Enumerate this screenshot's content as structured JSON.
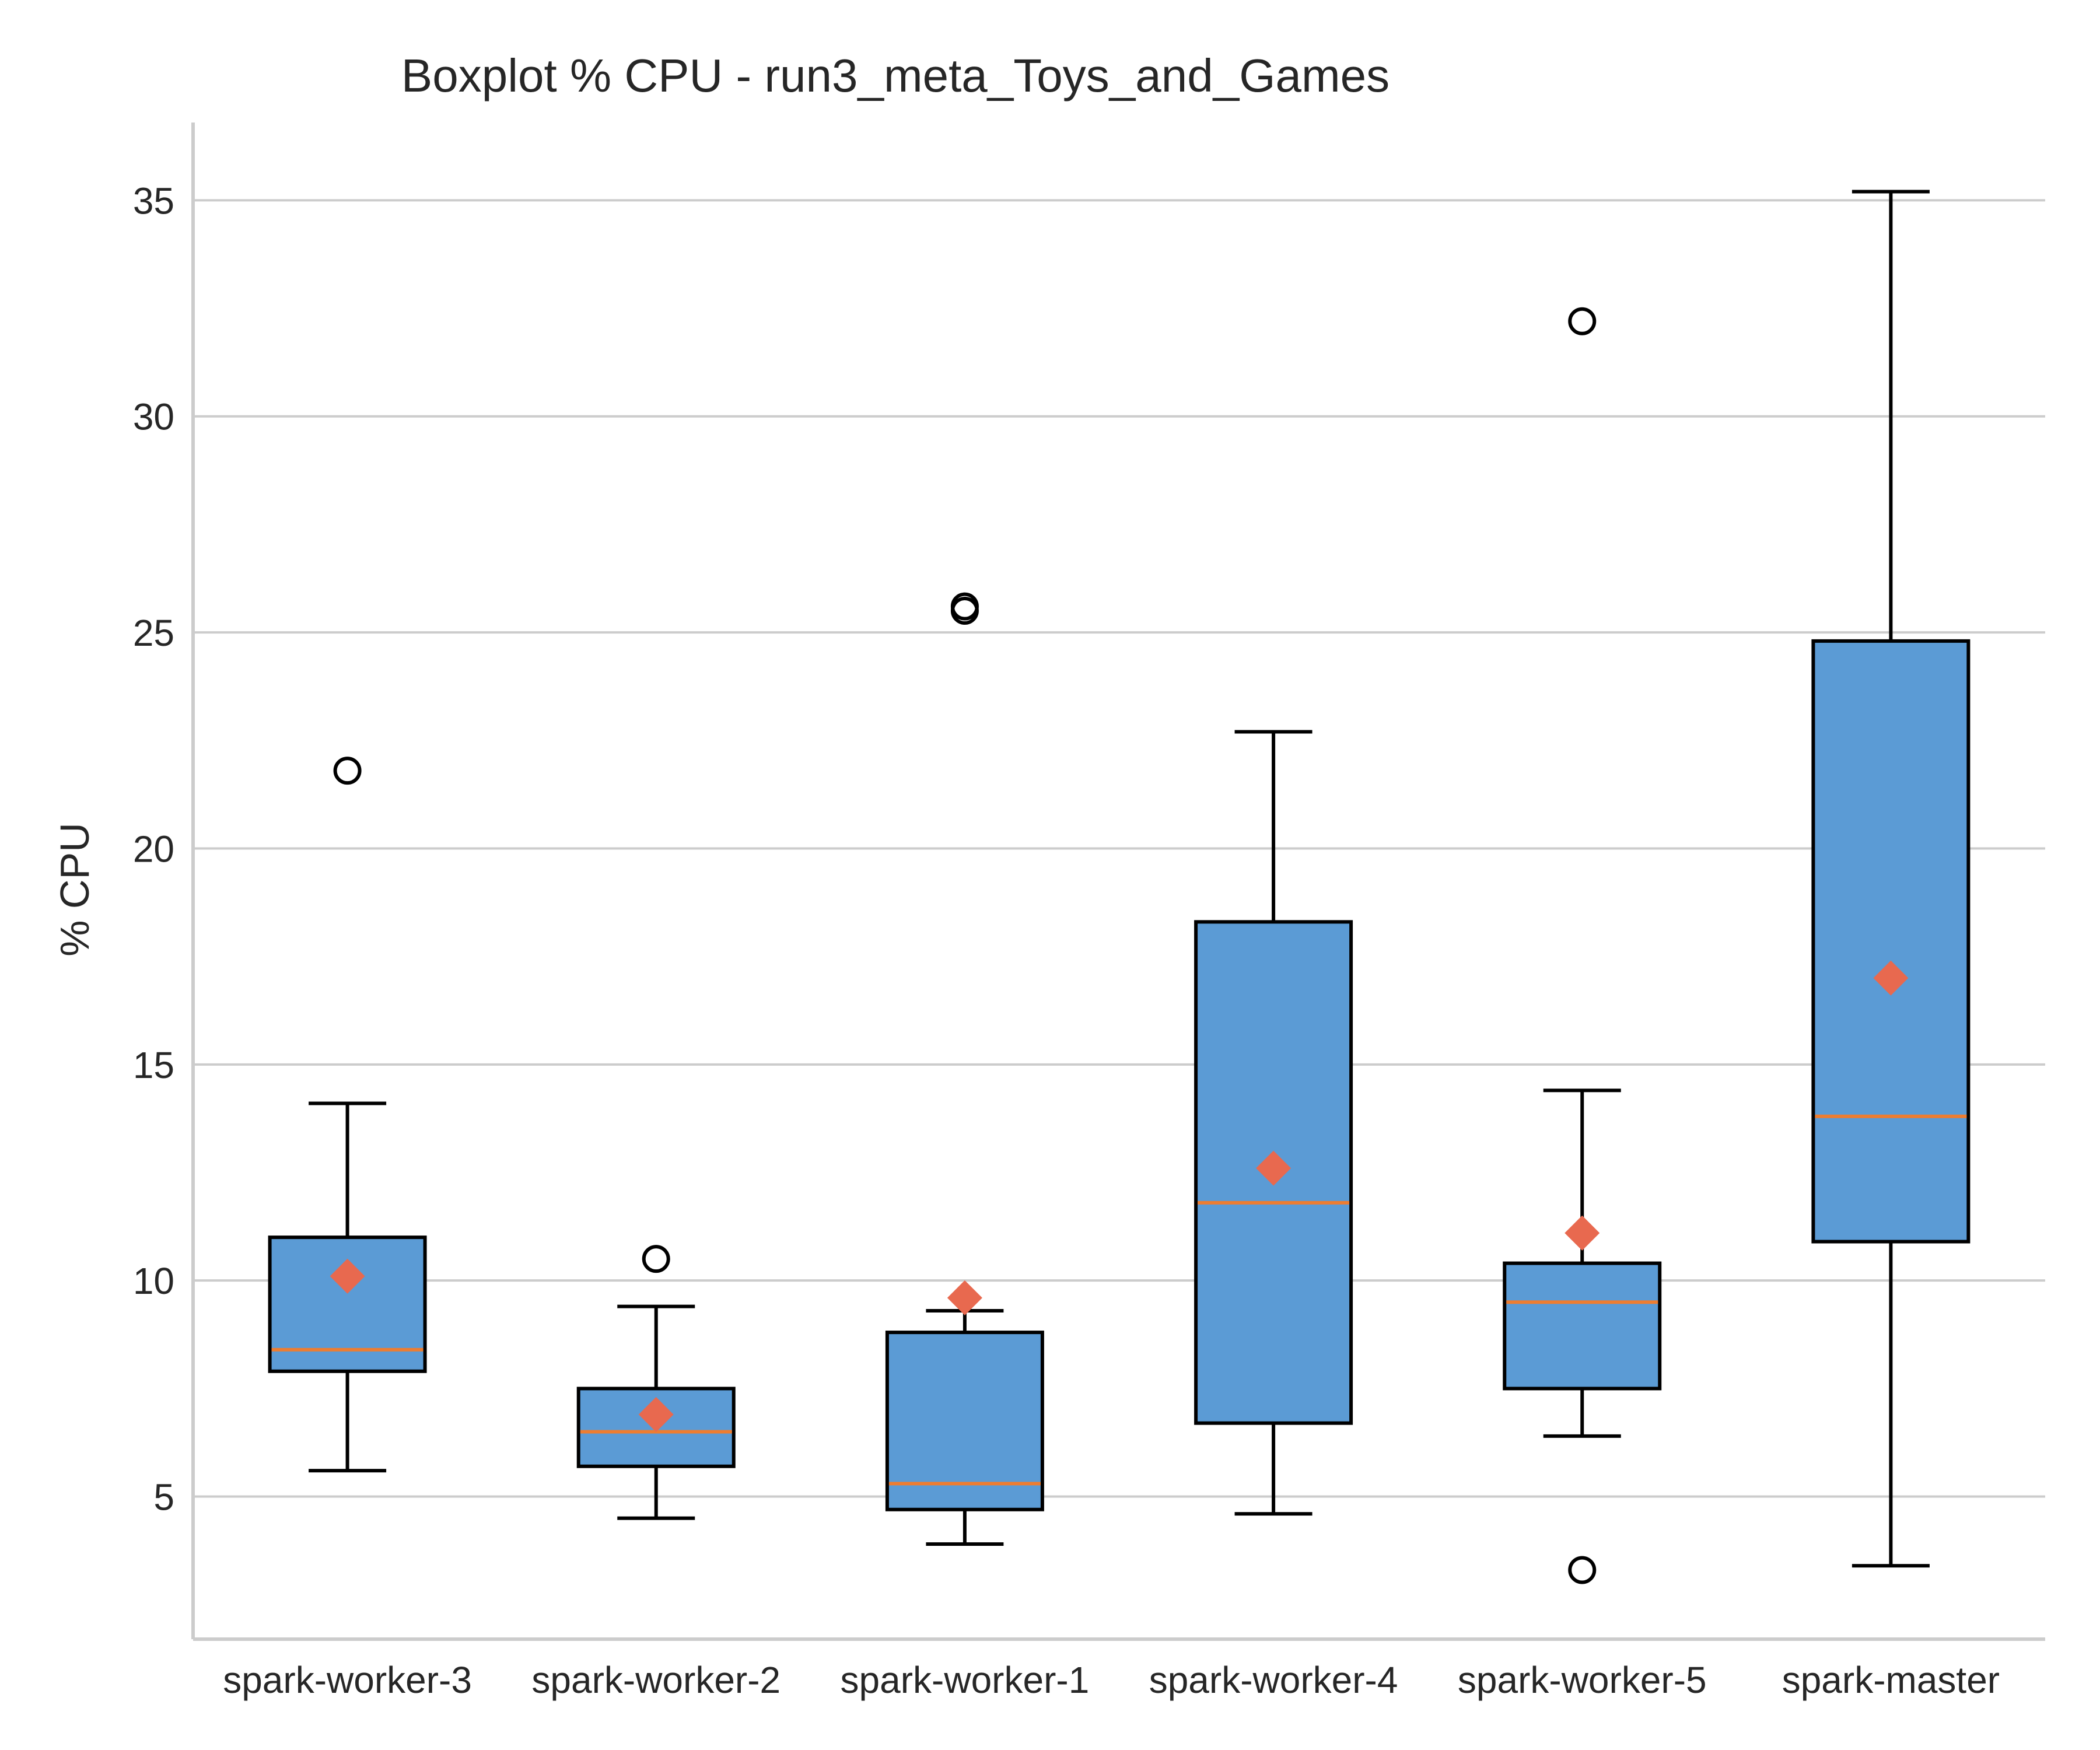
{
  "chart_data": {
    "type": "box",
    "title": "Boxplot % CPU - run3_meta_Toys_and_Games",
    "xlabel": "",
    "ylabel": "% CPU",
    "ylim": [
      1.7,
      36.8
    ],
    "yticks": [
      5,
      10,
      15,
      20,
      25,
      30,
      35
    ],
    "grid": "y",
    "colors": {
      "box_fill": "#5b9bd5",
      "box_edge": "#000000",
      "median": "#ed7d31",
      "mean_marker": "#e8694f",
      "grid": "#cccccc"
    },
    "categories": [
      "spark-worker-3",
      "spark-worker-2",
      "spark-worker-1",
      "spark-worker-4",
      "spark-worker-5",
      "spark-master"
    ],
    "boxes": [
      {
        "category": "spark-worker-3",
        "whisker_low": 5.6,
        "q1": 7.9,
        "median": 8.4,
        "q3": 11.0,
        "whisker_high": 14.1,
        "mean": 10.1,
        "outliers": [
          21.8
        ]
      },
      {
        "category": "spark-worker-2",
        "whisker_low": 4.5,
        "q1": 5.7,
        "median": 6.5,
        "q3": 7.5,
        "whisker_high": 9.4,
        "mean": 6.9,
        "outliers": [
          10.5
        ]
      },
      {
        "category": "spark-worker-1",
        "whisker_low": 3.9,
        "q1": 4.7,
        "median": 5.3,
        "q3": 8.8,
        "whisker_high": 9.3,
        "mean": 9.6,
        "outliers": [
          25.5,
          25.6
        ]
      },
      {
        "category": "spark-worker-4",
        "whisker_low": 4.6,
        "q1": 6.7,
        "median": 11.8,
        "q3": 18.3,
        "whisker_high": 22.7,
        "mean": 12.6,
        "outliers": []
      },
      {
        "category": "spark-worker-5",
        "whisker_low": 6.4,
        "q1": 7.5,
        "median": 9.5,
        "q3": 10.4,
        "whisker_high": 14.4,
        "mean": 11.1,
        "outliers": [
          32.2,
          3.3
        ]
      },
      {
        "category": "spark-master",
        "whisker_low": 3.4,
        "q1": 10.9,
        "median": 13.8,
        "q3": 24.8,
        "whisker_high": 35.2,
        "mean": 17.0,
        "outliers": []
      }
    ]
  }
}
